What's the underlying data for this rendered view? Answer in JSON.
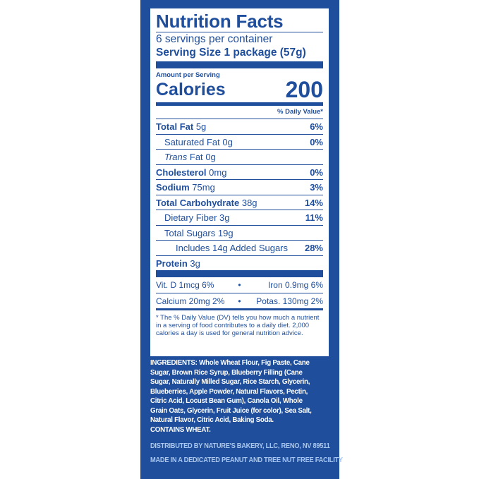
{
  "label": {
    "title": "Nutrition Facts",
    "servings": "6 servings per container",
    "serving_size": "Serving Size 1 package (57g)",
    "amount_per_serving": "Amount per Serving",
    "calories_label": "Calories",
    "calories": "200",
    "dv_header": "% Daily Value*",
    "rows": [
      {
        "name": "Total Fat",
        "amount": "5g",
        "dv": "6%"
      },
      {
        "name": "Saturated Fat",
        "amount": "0g",
        "dv": "0%"
      },
      {
        "name": "Trans",
        "name2": "Fat",
        "amount": "0g",
        "dv": ""
      },
      {
        "name": "Cholesterol",
        "amount": "0mg",
        "dv": "0%"
      },
      {
        "name": "Sodium",
        "amount": "75mg",
        "dv": "3%"
      },
      {
        "name": "Total Carbohydrate",
        "amount": "38g",
        "dv": "14%"
      },
      {
        "name": "Dietary Fiber",
        "amount": "3g",
        "dv": "11%"
      },
      {
        "name": "Total Sugars",
        "amount": "19g",
        "dv": ""
      },
      {
        "name": "Includes 14g Added Sugars",
        "amount": "",
        "dv": "28%"
      },
      {
        "name": "Protein",
        "amount": "3g",
        "dv": ""
      }
    ],
    "vitamins": [
      [
        "Vit. D 1mcg 6%",
        "Iron 0.9mg 6%"
      ],
      [
        "Calcium 20mg 2%",
        "Potas. 130mg 2%"
      ]
    ],
    "footnote": "* The % Daily Value (DV) tells you how much a nutrient in a serving of food contributes to a daily diet. 2,000 calories a day is used for general nutrition advice."
  },
  "ingredients": {
    "label": "INGREDIENTS:",
    "text": " Whole Wheat Flour, Fig Paste, Cane Sugar, Brown Rice Syrup, Blueberry Filling (Cane Sugar, Naturally Milled Sugar, Rice Starch, Glycerin, Blueberries, Apple Powder, Natural Flavors, Pectin, Citric Acid, Locust Bean Gum), Canola Oil, Whole Grain Oats, Glycerin, Fruit Juice (for color), Sea Salt, Natural Flavor, Citric Acid, Baking Soda.",
    "contains": "CONTAINS WHEAT."
  },
  "distributed": "DISTRIBUTED BY NATURE'S BAKERY, LLC, RENO, NV 89511",
  "facility": "MADE IN A DEDICATED PEANUT AND TREE NUT FREE FACILITY",
  "colors": {
    "brand_blue": "#1f4e9c",
    "light_blue": "#a8c6ee"
  }
}
